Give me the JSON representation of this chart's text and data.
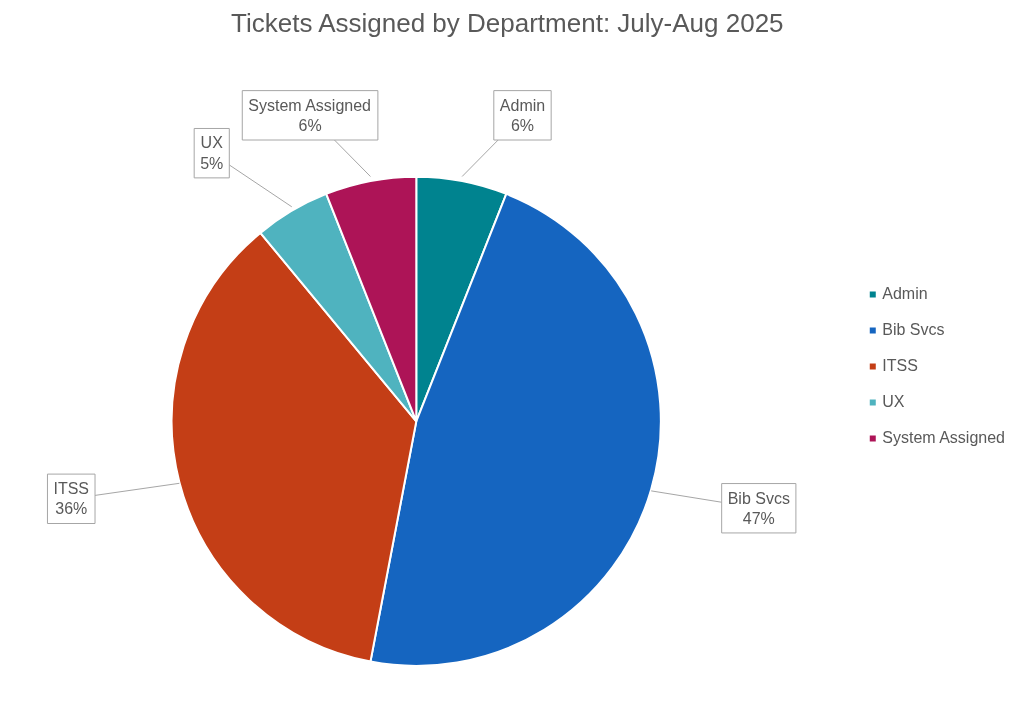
{
  "chart_data": {
    "type": "pie",
    "title": "Tickets Assigned by Department: July-Aug 2025",
    "categories": [
      "Admin",
      "Bib Svcs",
      "ITSS",
      "UX",
      "System Assigned"
    ],
    "values": [
      6,
      47,
      36,
      5,
      6
    ],
    "colors": [
      "#00838f",
      "#1565c0",
      "#c43e16",
      "#4fb3bf",
      "#ad1457"
    ],
    "value_labels": [
      "6%",
      "47%",
      "36%",
      "5%",
      "6%"
    ],
    "legend": "right"
  }
}
